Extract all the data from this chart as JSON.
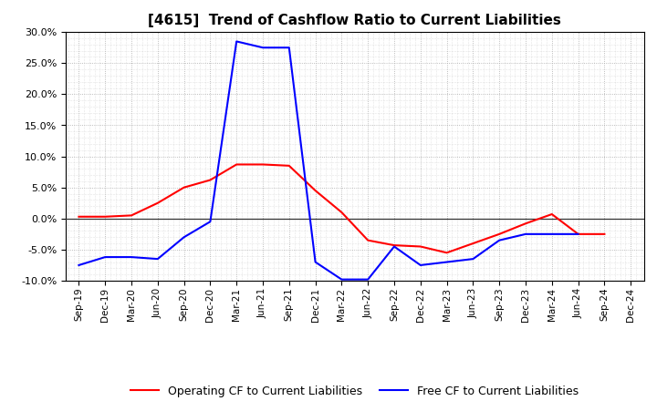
{
  "title": "[4615]  Trend of Cashflow Ratio to Current Liabilities",
  "x_labels": [
    "Sep-19",
    "Dec-19",
    "Mar-20",
    "Jun-20",
    "Sep-20",
    "Dec-20",
    "Mar-21",
    "Jun-21",
    "Sep-21",
    "Dec-21",
    "Mar-22",
    "Jun-22",
    "Sep-22",
    "Dec-22",
    "Mar-23",
    "Jun-23",
    "Sep-23",
    "Dec-23",
    "Mar-24",
    "Jun-24",
    "Sep-24",
    "Dec-24"
  ],
  "operating_cf": [
    0.3,
    0.3,
    0.5,
    2.5,
    5.0,
    6.2,
    8.7,
    8.7,
    8.5,
    4.5,
    1.0,
    -3.5,
    -4.3,
    -4.5,
    -5.5,
    -4.0,
    -2.5,
    -0.8,
    0.7,
    -2.5,
    -2.5,
    null
  ],
  "free_cf": [
    -7.5,
    -6.2,
    -6.2,
    -6.5,
    -3.0,
    -0.5,
    28.5,
    27.5,
    27.5,
    -7.0,
    -9.8,
    -9.8,
    -4.5,
    -7.5,
    -7.0,
    -6.5,
    -3.5,
    -2.5,
    -2.5,
    -2.5,
    null,
    null
  ],
  "ylim": [
    -10.0,
    30.0
  ],
  "yticks": [
    -10.0,
    -5.0,
    0.0,
    5.0,
    10.0,
    15.0,
    20.0,
    25.0,
    30.0
  ],
  "operating_color": "#FF0000",
  "free_color": "#0000FF",
  "bg_color": "#FFFFFF",
  "plot_bg_color": "#FFFFFF",
  "grid_color": "#AAAAAA",
  "zero_line_color": "#333333",
  "legend_operating": "Operating CF to Current Liabilities",
  "legend_free": "Free CF to Current Liabilities",
  "title_fontsize": 11,
  "tick_fontsize": 8,
  "legend_fontsize": 9
}
